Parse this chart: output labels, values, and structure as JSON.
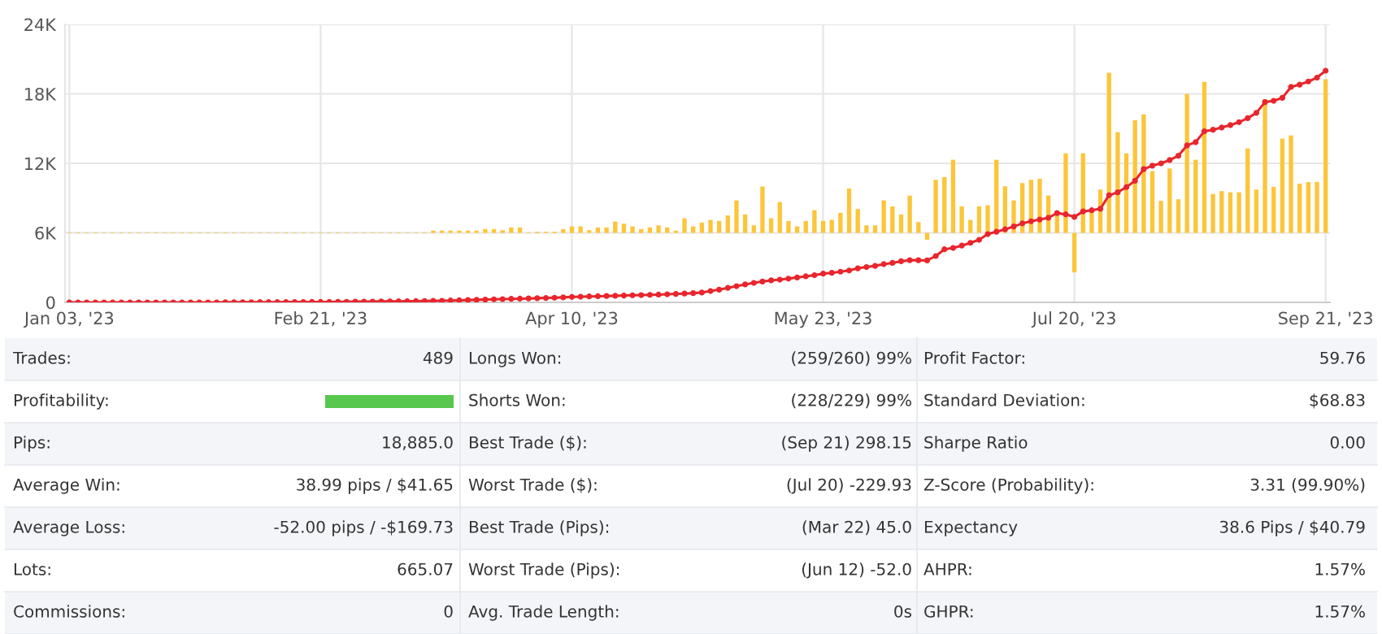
{
  "chart_data": [
    {
      "type": "bar",
      "categories": [
        "Jan 03, '23",
        null,
        null,
        null,
        null,
        null,
        null,
        null,
        null,
        null,
        null,
        null,
        null,
        null,
        null,
        null,
        null,
        null,
        null,
        null,
        null,
        null,
        null,
        null,
        null,
        null,
        null,
        null,
        null,
        "Feb 21, '23",
        null,
        null,
        null,
        null,
        null,
        null,
        null,
        null,
        null,
        null,
        null,
        null,
        null,
        null,
        null,
        null,
        null,
        null,
        null,
        null,
        null,
        null,
        null,
        null,
        null,
        null,
        null,
        null,
        "Apr 10, '23",
        null,
        null,
        null,
        null,
        null,
        null,
        null,
        null,
        null,
        null,
        null,
        null,
        null,
        null,
        null,
        null,
        null,
        null,
        null,
        null,
        null,
        null,
        null,
        null,
        null,
        null,
        null,
        null,
        "May 23, '23",
        null,
        null,
        null,
        null,
        null,
        null,
        null,
        null,
        null,
        null,
        null,
        null,
        null,
        null,
        null,
        null,
        null,
        null,
        null,
        null,
        null,
        null,
        null,
        null,
        null,
        null,
        null,
        null,
        "Jul 20, '23",
        null,
        null,
        null,
        null,
        null,
        null,
        null,
        null,
        null,
        null,
        null,
        null,
        null,
        null,
        null,
        null,
        null,
        null,
        null,
        null,
        null,
        null,
        null,
        null,
        null,
        null,
        null,
        null,
        "Sep 21, '23"
      ],
      "series": [
        {
          "type": "bar",
          "color": "#fcc53a",
          "base": [
            6000,
            6000,
            6000,
            6000,
            6000,
            6000,
            6000,
            6000,
            6000,
            6000,
            6000,
            6000,
            6000,
            6000,
            6000,
            6000,
            6000,
            6000,
            6000,
            6000,
            6000,
            6000,
            6000,
            6000,
            6000,
            6000,
            6000,
            6000,
            6000,
            6000,
            6000,
            6000,
            6000,
            6000,
            6000,
            6000,
            6000,
            6000,
            6000,
            6000,
            6000,
            6000,
            6000,
            6000,
            6000,
            6000,
            6000,
            6000,
            6000,
            6000,
            6000,
            6000,
            6000,
            6000,
            6000,
            6000,
            6000,
            6000,
            6000,
            6000,
            6000,
            6000,
            6000,
            6000,
            6000,
            6000,
            6000,
            6000,
            6000,
            6000,
            6000,
            6000,
            6000,
            6000,
            6000,
            6000,
            6000,
            6000,
            6000,
            6000,
            6000,
            6000,
            6000,
            6000,
            6000,
            6000,
            6000,
            6000,
            6000,
            6000,
            6000,
            6000,
            6000,
            6000,
            6000,
            6000,
            6000,
            6000,
            6000,
            6000,
            6000,
            6000,
            6000,
            6000,
            6000,
            6000,
            6000,
            6000,
            6000,
            6000,
            6000,
            6000,
            6000,
            6000,
            6000,
            6000,
            6000,
            6000,
            6000,
            6000,
            6000,
            6000,
            6000,
            6000,
            6000,
            6000,
            6000,
            6000,
            6000,
            6000,
            6000,
            6000,
            6000,
            6000,
            6000,
            6000,
            6000,
            6000,
            6000,
            6000,
            6000,
            6000,
            6000,
            6000,
            6000,
            6000
          ],
          "values": [
            50,
            50,
            50,
            50,
            50,
            50,
            50,
            50,
            50,
            50,
            50,
            50,
            50,
            50,
            50,
            50,
            50,
            50,
            50,
            50,
            50,
            50,
            50,
            50,
            50,
            50,
            50,
            50,
            50,
            50,
            50,
            50,
            50,
            50,
            50,
            50,
            50,
            50,
            50,
            50,
            50,
            50,
            200,
            200,
            200,
            200,
            200,
            200,
            330,
            330,
            230,
            470,
            470,
            50,
            100,
            100,
            100,
            330,
            560,
            560,
            230,
            470,
            470,
            980,
            790,
            560,
            330,
            470,
            650,
            470,
            190,
            1260,
            560,
            890,
            1120,
            1030,
            1500,
            2800,
            1590,
            650,
            4000,
            1260,
            2660,
            1030,
            560,
            1030,
            1960,
            1030,
            1120,
            1730,
            3830,
            2060,
            650,
            650,
            2800,
            2290,
            1590,
            3220,
            930,
            -600,
            4580,
            4810,
            6310,
            2290,
            1120,
            2290,
            2380,
            6310,
            4020,
            2800,
            4300,
            4580,
            4670,
            3220,
            1640,
            6870,
            -3410,
            6870,
            1820,
            3740,
            13830,
            8690,
            6870,
            9720,
            10230,
            5330,
            2760,
            5560,
            2900,
            12000,
            6310,
            13040,
            3360,
            3600,
            3500,
            3500,
            7290,
            3740,
            11540,
            3970,
            8130,
            8410,
            4250,
            4390,
            4400,
            13270
          ]
        },
        {
          "type": "line",
          "color": "#e8262d",
          "marker": "circle",
          "line_style": "solid",
          "values": [
            0,
            0,
            0,
            0,
            0,
            0,
            0,
            0,
            0,
            0,
            0,
            0,
            0,
            0,
            0,
            0,
            0,
            0,
            10,
            10,
            10,
            10,
            20,
            20,
            20,
            30,
            30,
            30,
            40,
            40,
            40,
            50,
            50,
            60,
            60,
            70,
            80,
            80,
            90,
            100,
            110,
            120,
            130,
            140,
            160,
            180,
            200,
            220,
            240,
            260,
            280,
            300,
            320,
            340,
            360,
            380,
            400,
            430,
            470,
            490,
            510,
            530,
            550,
            570,
            590,
            610,
            630,
            650,
            670,
            700,
            730,
            760,
            800,
            850,
            980,
            1100,
            1250,
            1400,
            1550,
            1680,
            1800,
            1900,
            1960,
            2050,
            2150,
            2250,
            2350,
            2480,
            2550,
            2650,
            2750,
            2940,
            3050,
            3150,
            3300,
            3410,
            3550,
            3640,
            3640,
            3620,
            4000,
            4580,
            4700,
            4900,
            5140,
            5400,
            5890,
            6100,
            6300,
            6550,
            6820,
            7000,
            7150,
            7300,
            7710,
            7600,
            7380,
            7850,
            7950,
            8080,
            9250,
            9500,
            9950,
            10500,
            11500,
            11800,
            12000,
            12290,
            12660,
            13550,
            13830,
            14770,
            14900,
            15100,
            15300,
            15560,
            15900,
            16360,
            17290,
            17400,
            17660,
            18600,
            18800,
            19070,
            19400,
            20000
          ]
        }
      ],
      "ylim": [
        0,
        24000
      ],
      "yticks": [
        0,
        {
          "value": 6000,
          "label": "6K"
        },
        {
          "value": 12000,
          "label": "12K"
        },
        {
          "value": 18000,
          "label": "18K"
        },
        {
          "value": 24000,
          "label": "24K"
        }
      ],
      "grid": true
    },
    {
      "type": "other",
      "annotations": [
        "Trades:",
        "489",
        "Longs Won:",
        "(259/260) 99%",
        "Profit Factor:",
        "59.76",
        "Profitability:",
        "Shorts Won:",
        "(228/229) 99%",
        "Standard Deviation:",
        "$68.83",
        "Pips:",
        "18,885.0",
        "Best Trade ($):",
        "(Sep 21) 298.15",
        "Sharpe Ratio",
        "0.00",
        "Average Win:",
        "38.99 pips / $41.65",
        "Worst Trade ($):",
        "(Jul 20) -229.93",
        "Z-Score (Probability):",
        "3.31 (99.90%)",
        "Average Loss:",
        "-52.00 pips / -$169.73",
        "Best Trade (Pips):",
        "(Mar 22) 45.0",
        "Expectancy",
        "38.6 Pips / $40.79",
        "Lots:",
        "665.07",
        "Worst Trade (Pips):",
        "(Jun 12) -52.0",
        "AHPR:",
        "1.57%",
        "Commissions:",
        "0",
        "Avg. Trade Length:",
        "0s",
        "GHPR:",
        "1.57%"
      ]
    }
  ]
}
